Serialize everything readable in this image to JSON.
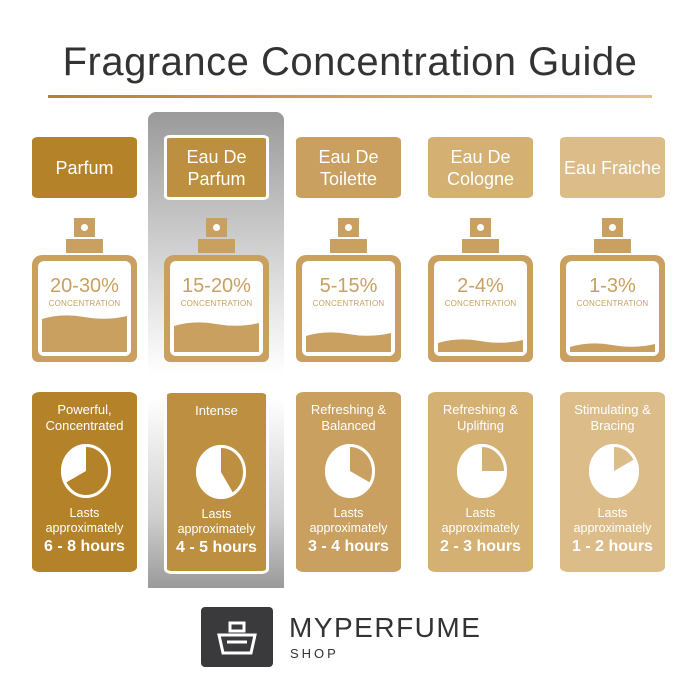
{
  "title": "Fragrance Concentration Guide",
  "concentration_label": "CONCENTRATION",
  "lasts_label": [
    "Lasts",
    "approximately"
  ],
  "columns": [
    {
      "name": "Parfum",
      "percent": "20-30%",
      "fill_level": 0.38,
      "description": "Powerful, Concentrated",
      "hours": "6 - 8 hours",
      "clock_hours": 8,
      "color": "#b48229",
      "bottle_color": "#c9a060",
      "selected": false
    },
    {
      "name": "Eau De Parfum",
      "percent": "15-20%",
      "fill_level": 0.3,
      "description": "Intense",
      "hours": "4 - 5 hours",
      "clock_hours": 5,
      "color": "#bd8f40",
      "bottle_color": "#c9a060",
      "selected": true
    },
    {
      "name": "Eau De Toilette",
      "percent": "5-15%",
      "fill_level": 0.18,
      "description": "Refreshing & Balanced",
      "hours": "3 - 4 hours",
      "clock_hours": 4,
      "color": "#c9a060",
      "bottle_color": "#c9a060",
      "selected": false
    },
    {
      "name": "Eau De Cologne",
      "percent": "2-4%",
      "fill_level": 0.1,
      "description": "Refreshing & Uplifting",
      "hours": "2 - 3 hours",
      "clock_hours": 3,
      "color": "#d5b073",
      "bottle_color": "#c9a060",
      "selected": false
    },
    {
      "name": "Eau Fraiche",
      "percent": "1-3%",
      "fill_level": 0.06,
      "description": "Stimulating & Bracing",
      "hours": "1 - 2 hours",
      "clock_hours": 2,
      "color": "#dcbd8a",
      "bottle_color": "#c9a060",
      "selected": false
    }
  ],
  "brand": {
    "name": "MYPERFUME",
    "sub": "SHOP"
  }
}
